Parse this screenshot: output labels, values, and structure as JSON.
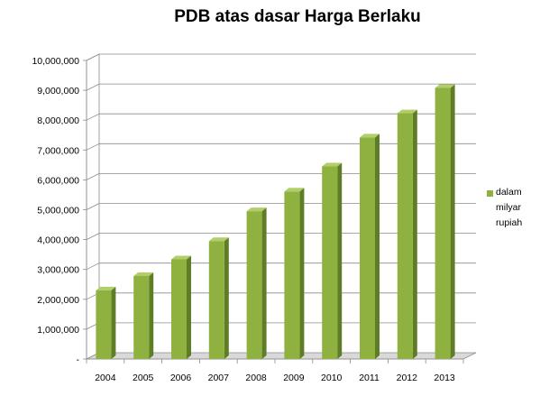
{
  "chart_data": {
    "type": "bar",
    "title": "PDB atas dasar Harga Berlaku",
    "categories": [
      "2004",
      "2005",
      "2006",
      "2007",
      "2008",
      "2009",
      "2010",
      "2011",
      "2012",
      "2013"
    ],
    "series": [
      {
        "name": "dalam milyar rupiah",
        "values": [
          2300000,
          2780000,
          3340000,
          3950000,
          4950000,
          5610000,
          6450000,
          7420000,
          8230000,
          9080000
        ]
      }
    ],
    "ylim": [
      0,
      10000000
    ],
    "yticks": [
      0,
      1000000,
      2000000,
      3000000,
      4000000,
      5000000,
      6000000,
      7000000,
      8000000,
      9000000,
      10000000
    ],
    "ytick_labels": [
      "-",
      "1,000,000",
      "2,000,000",
      "3,000,000",
      "4,000,000",
      "5,000,000",
      "6,000,000",
      "7,000,000",
      "8,000,000",
      "9,000,000",
      "10,000,000"
    ],
    "xlabel": "",
    "ylabel": "",
    "grid": true,
    "legend": {
      "position": "right",
      "lines": [
        "dalam",
        "milyar",
        "rupiah"
      ]
    },
    "colors": {
      "bar_front": "#8fb140",
      "bar_side": "#5f7d26",
      "bar_top": "#b1ce6a",
      "grid": "#8c8c8c",
      "wall": "#d9d9d9"
    }
  }
}
